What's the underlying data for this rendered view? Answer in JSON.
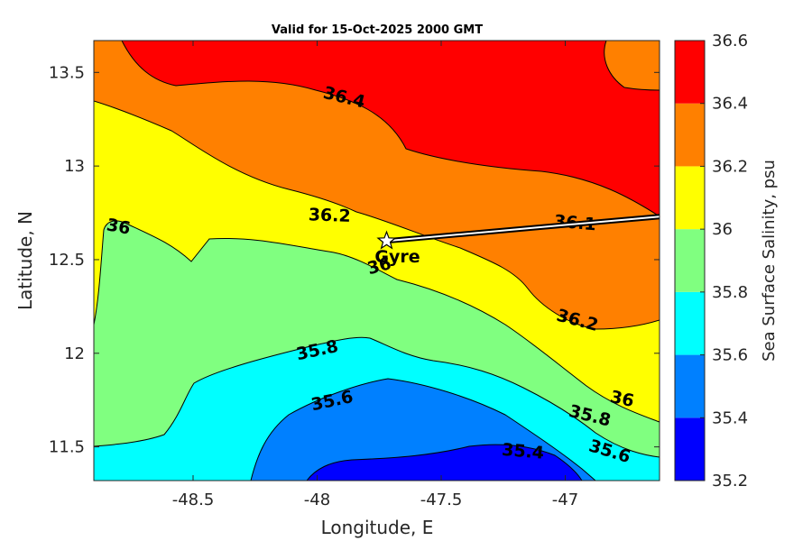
{
  "title": "Valid for 15-Oct-2025 2000 GMT",
  "chart_data": {
    "type": "heatmap",
    "subtype": "filled-contour",
    "xlabel": "Longitude, E",
    "ylabel": "Latitude, N",
    "xlim": [
      -48.9,
      -46.62
    ],
    "ylim": [
      11.32,
      13.67
    ],
    "xticks": [
      "-48.5",
      "-48",
      "-47.5",
      "-47"
    ],
    "yticks": [
      "13.5",
      "13",
      "12.5",
      "12",
      "11.5"
    ],
    "colorbar": {
      "label": "Sea Surface Salinity, psu",
      "levels": [
        35.2,
        35.4,
        35.6,
        35.8,
        36.0,
        36.2,
        36.4,
        36.6
      ],
      "tick_labels": [
        "36.6",
        "36.4",
        "36.2",
        "36",
        "35.8",
        "35.6",
        "35.4",
        "35.2"
      ],
      "colors": [
        "#0000ff",
        "#0080ff",
        "#00ffff",
        "#80ff80",
        "#ffff00",
        "#ff8000",
        "#ff0000"
      ]
    },
    "contour_labels": [
      {
        "text": "36.4",
        "lon": -47.89,
        "lat": 13.37
      },
      {
        "text": "36.2",
        "lon": -47.95,
        "lat": 12.74
      },
      {
        "text": "36",
        "lon": -48.8,
        "lat": 12.68
      },
      {
        "text": "36",
        "lon": -47.75,
        "lat": 12.47
      },
      {
        "text": "36.1",
        "lon": -46.96,
        "lat": 12.7
      },
      {
        "text": "36.2",
        "lon": -46.95,
        "lat": 12.18
      },
      {
        "text": "35.8",
        "lon": -48.0,
        "lat": 12.02
      },
      {
        "text": "35.6",
        "lon": -47.94,
        "lat": 11.75
      },
      {
        "text": "36",
        "lon": -46.77,
        "lat": 11.76
      },
      {
        "text": "35.8",
        "lon": -46.9,
        "lat": 11.67
      },
      {
        "text": "35.4",
        "lon": -47.17,
        "lat": 11.48
      },
      {
        "text": "35.6",
        "lon": -46.82,
        "lat": 11.48
      }
    ],
    "marker": {
      "label": "Gyre",
      "lon": -47.72,
      "lat": 12.6,
      "symbol": "star"
    },
    "track": {
      "from": {
        "lon": -47.72,
        "lat": 12.6
      },
      "to": {
        "lon": -46.62,
        "lat": 12.73
      }
    }
  }
}
